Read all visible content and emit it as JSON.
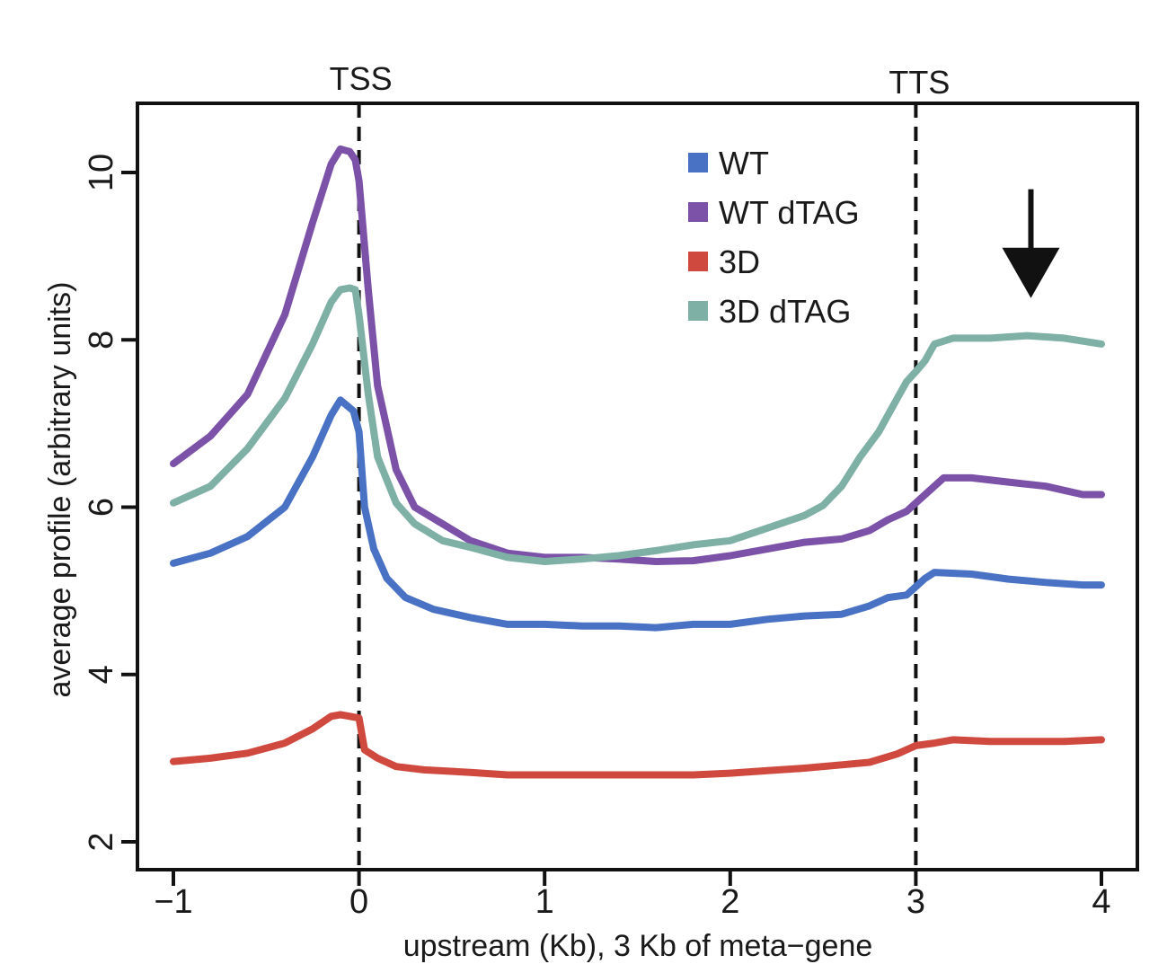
{
  "chart_data": {
    "type": "line",
    "title": "",
    "xlabel": "upstream (Kb), 3 Kb of meta−gene",
    "ylabel": "average profile (arbitrary units)",
    "xlim": [
      -1,
      4
    ],
    "ylim": [
      2,
      10.8
    ],
    "xticks": [
      -1,
      0,
      1,
      2,
      3,
      4
    ],
    "xtick_labels": [
      "−1",
      "0",
      "1",
      "2",
      "3",
      "4"
    ],
    "yticks": [
      2,
      4,
      6,
      8,
      10
    ],
    "ytick_labels": [
      "2",
      "4",
      "6",
      "8",
      "10"
    ],
    "grid": false,
    "legend_position": "top-right",
    "markers": [
      {
        "label": "TSS",
        "x": 0
      },
      {
        "label": "TTS",
        "x": 3
      }
    ],
    "annotation": {
      "type": "down-arrow",
      "x": 3.62,
      "y_top": 9.8,
      "y_bottom": 8.5
    },
    "series": [
      {
        "name": "WT",
        "color": "#4a72c4",
        "x": [
          -1,
          -0.8,
          -0.6,
          -0.4,
          -0.25,
          -0.15,
          -0.1,
          -0.03,
          0,
          0.03,
          0.08,
          0.15,
          0.25,
          0.4,
          0.6,
          0.8,
          1.0,
          1.2,
          1.4,
          1.6,
          1.8,
          2.0,
          2.2,
          2.4,
          2.6,
          2.75,
          2.85,
          2.95,
          3.0,
          3.05,
          3.1,
          3.3,
          3.5,
          3.7,
          3.9,
          4.0
        ],
        "values": [
          5.33,
          5.45,
          5.65,
          6.0,
          6.6,
          7.1,
          7.28,
          7.15,
          6.9,
          6.0,
          5.5,
          5.15,
          4.92,
          4.78,
          4.68,
          4.6,
          4.6,
          4.58,
          4.58,
          4.56,
          4.6,
          4.6,
          4.66,
          4.7,
          4.72,
          4.82,
          4.92,
          4.95,
          5.05,
          5.15,
          5.22,
          5.2,
          5.14,
          5.1,
          5.07,
          5.07
        ]
      },
      {
        "name": "WT dTAG",
        "color": "#7b52a8",
        "x": [
          -1,
          -0.8,
          -0.6,
          -0.4,
          -0.25,
          -0.15,
          -0.1,
          -0.05,
          -0.02,
          0,
          0.05,
          0.1,
          0.2,
          0.3,
          0.45,
          0.6,
          0.8,
          1.0,
          1.2,
          1.4,
          1.6,
          1.8,
          2.0,
          2.2,
          2.4,
          2.6,
          2.75,
          2.85,
          2.95,
          3.0,
          3.05,
          3.15,
          3.3,
          3.5,
          3.7,
          3.9,
          4.0
        ],
        "values": [
          6.52,
          6.85,
          7.35,
          8.3,
          9.4,
          10.1,
          10.28,
          10.25,
          10.15,
          9.9,
          8.6,
          7.45,
          6.45,
          6.0,
          5.8,
          5.6,
          5.45,
          5.4,
          5.4,
          5.38,
          5.35,
          5.36,
          5.42,
          5.5,
          5.58,
          5.62,
          5.72,
          5.85,
          5.95,
          6.05,
          6.15,
          6.35,
          6.35,
          6.3,
          6.25,
          6.15,
          6.15
        ]
      },
      {
        "name": "3D",
        "color": "#d0493f",
        "x": [
          -1,
          -0.8,
          -0.6,
          -0.4,
          -0.25,
          -0.15,
          -0.1,
          -0.05,
          0,
          0.03,
          0.1,
          0.2,
          0.35,
          0.6,
          0.8,
          1.0,
          1.2,
          1.4,
          1.6,
          1.8,
          2.0,
          2.2,
          2.4,
          2.6,
          2.75,
          2.9,
          3.0,
          3.1,
          3.2,
          3.4,
          3.6,
          3.8,
          4.0
        ],
        "values": [
          2.96,
          3.0,
          3.06,
          3.18,
          3.35,
          3.5,
          3.52,
          3.5,
          3.48,
          3.1,
          3.0,
          2.9,
          2.86,
          2.83,
          2.8,
          2.8,
          2.8,
          2.8,
          2.8,
          2.8,
          2.82,
          2.85,
          2.88,
          2.92,
          2.95,
          3.05,
          3.15,
          3.18,
          3.22,
          3.2,
          3.2,
          3.2,
          3.22
        ]
      },
      {
        "name": "3D dTAG",
        "color": "#7fb0a6",
        "x": [
          -1,
          -0.8,
          -0.6,
          -0.4,
          -0.25,
          -0.15,
          -0.1,
          -0.05,
          -0.02,
          0,
          0.05,
          0.1,
          0.2,
          0.3,
          0.45,
          0.6,
          0.8,
          1.0,
          1.2,
          1.4,
          1.6,
          1.8,
          2.0,
          2.2,
          2.4,
          2.5,
          2.6,
          2.7,
          2.8,
          2.9,
          2.95,
          3.0,
          3.05,
          3.1,
          3.2,
          3.4,
          3.6,
          3.8,
          4.0
        ],
        "values": [
          6.05,
          6.25,
          6.7,
          7.3,
          7.95,
          8.45,
          8.6,
          8.62,
          8.6,
          8.3,
          7.35,
          6.6,
          6.05,
          5.8,
          5.6,
          5.52,
          5.4,
          5.35,
          5.38,
          5.42,
          5.48,
          5.55,
          5.6,
          5.75,
          5.9,
          6.02,
          6.25,
          6.6,
          6.9,
          7.3,
          7.5,
          7.62,
          7.75,
          7.95,
          8.02,
          8.02,
          8.05,
          8.02,
          7.95
        ]
      }
    ]
  }
}
